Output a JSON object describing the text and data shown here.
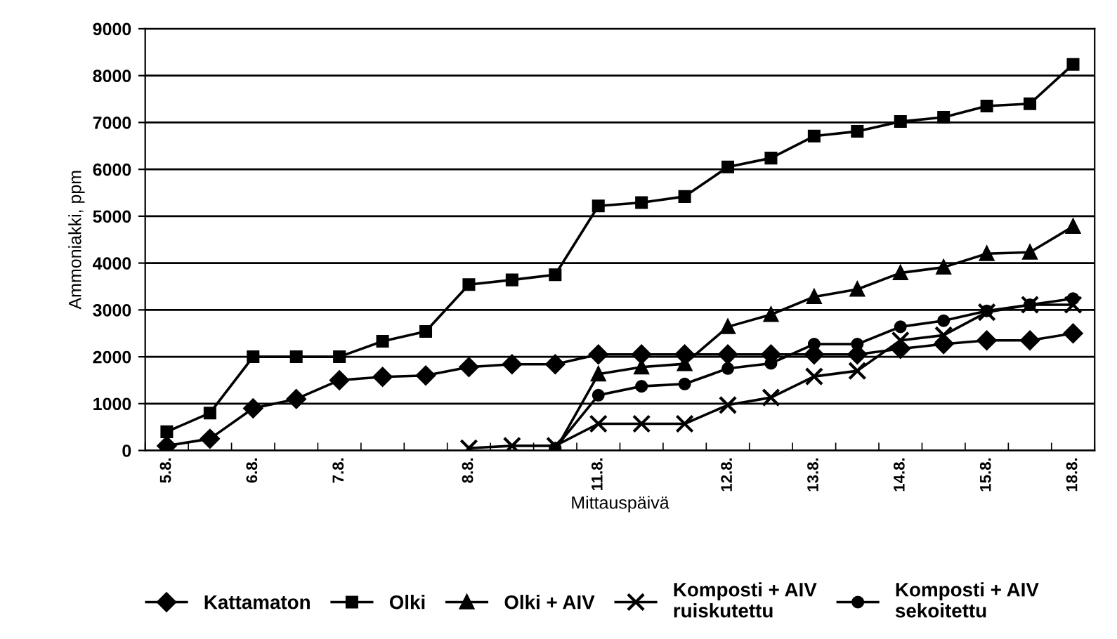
{
  "chart_data": {
    "type": "line",
    "xlabel": "Mittauspäivä",
    "ylabel": "Ammoniakki, ppm",
    "categories": [
      "5.8.",
      null,
      "6.8.",
      null,
      "7.8.",
      null,
      null,
      "8.8.",
      null,
      null,
      "11.8.",
      null,
      null,
      "12.8.",
      null,
      "13.8.",
      null,
      "14.8.",
      null,
      "15.8.",
      null,
      "18.8."
    ],
    "ylim": [
      0,
      9000
    ],
    "yticks": [
      0,
      1000,
      2000,
      3000,
      4000,
      5000,
      6000,
      7000,
      8000,
      9000
    ],
    "grid": "y",
    "legend": "bottom",
    "series": [
      {
        "name": "Kattamaton",
        "color": "#000000",
        "marker": "diamond",
        "values": [
          100,
          250,
          900,
          1100,
          1500,
          1570,
          1600,
          1780,
          1840,
          1840,
          2050,
          2050,
          2050,
          2050,
          2050,
          2050,
          2050,
          2170,
          2270,
          2350,
          2350,
          2500
        ]
      },
      {
        "name": "Olki",
        "color": "#000000",
        "marker": "square",
        "values": [
          400,
          800,
          2000,
          2000,
          2000,
          2330,
          2540,
          3540,
          3640,
          3750,
          5220,
          5290,
          5420,
          6050,
          6240,
          6710,
          6810,
          7020,
          7110,
          7350,
          7400,
          8240
        ]
      },
      {
        "name": "Olki + AIV",
        "color": "#000000",
        "marker": "triangle",
        "values": [
          null,
          null,
          null,
          null,
          null,
          null,
          null,
          null,
          null,
          0,
          1630,
          1780,
          1850,
          2640,
          2900,
          3280,
          3440,
          3790,
          3910,
          4200,
          4230,
          4780
        ]
      },
      {
        "name": "Komposti + AIV\nruiskutettu",
        "color": "#000000",
        "marker": "cross",
        "values": [
          null,
          null,
          null,
          null,
          null,
          null,
          null,
          50,
          100,
          100,
          570,
          570,
          570,
          970,
          1130,
          1580,
          1700,
          2350,
          2460,
          2950,
          3110,
          3110
        ]
      },
      {
        "name": "Komposti + AIV\nsekoitettu",
        "color": "#000000",
        "marker": "circle",
        "values": [
          null,
          null,
          null,
          null,
          null,
          null,
          null,
          null,
          null,
          50,
          1180,
          1370,
          1420,
          1750,
          1860,
          2270,
          2270,
          2640,
          2770,
          2980,
          3110,
          3240
        ]
      }
    ]
  }
}
